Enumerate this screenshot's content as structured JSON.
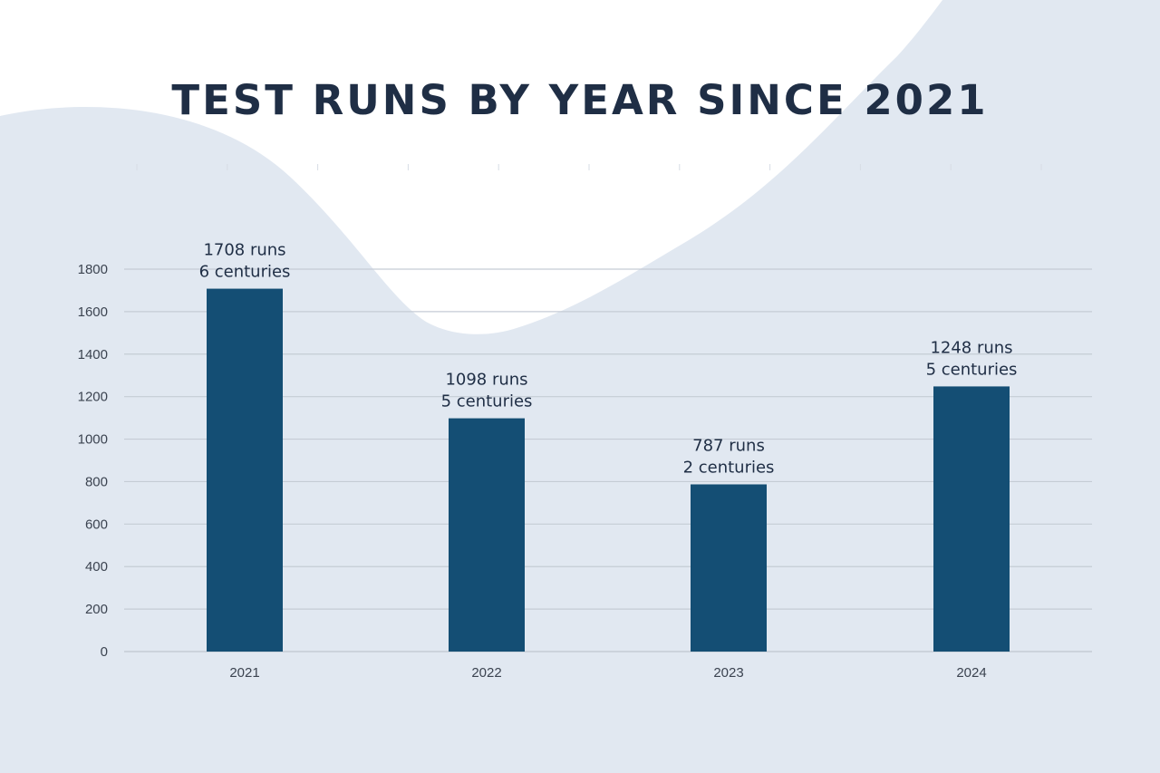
{
  "colors": {
    "background": "#ffffff",
    "wave": "#e1e8f1",
    "bar": "#144e74",
    "grid": "#c5ccd5",
    "title": "#1f2e45",
    "label": "#1f2e45",
    "tick": "#3b4350"
  },
  "chart_data": {
    "type": "bar",
    "title": "TEST RUNS BY YEAR SINCE 2021",
    "xlabel": "",
    "ylabel": "",
    "categories": [
      "2021",
      "2022",
      "2023",
      "2024"
    ],
    "values": [
      1708,
      1098,
      787,
      1248
    ],
    "data_labels": [
      [
        "1708 runs",
        "6 centuries"
      ],
      [
        "1098 runs",
        "5 centuries"
      ],
      [
        "787 runs",
        "2 centuries"
      ],
      [
        "1248 runs",
        "5 centuries"
      ]
    ],
    "yticks": [
      0,
      200,
      400,
      600,
      800,
      1000,
      1200,
      1400,
      1600,
      1800
    ],
    "ylim": [
      0,
      1800
    ],
    "grid": true,
    "legend": "none"
  }
}
